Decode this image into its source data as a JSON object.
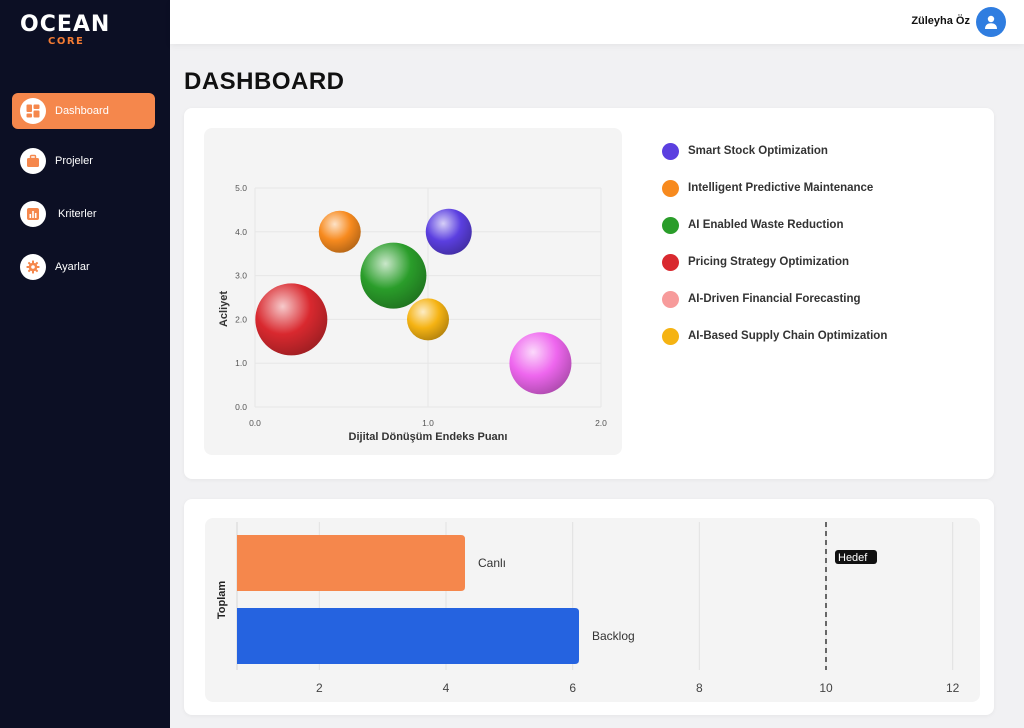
{
  "brand": {
    "name": "OCEAN",
    "sub": "CORE"
  },
  "sidebar": {
    "items": [
      {
        "label": "Dashboard",
        "icon": "dashboard-icon",
        "active": true
      },
      {
        "label": "Projeler",
        "icon": "briefcase-icon",
        "active": false
      },
      {
        "label": "Kriterler",
        "icon": "bar-chart-icon",
        "active": false
      },
      {
        "label": "Ayarlar",
        "icon": "gear-icon",
        "active": false
      }
    ]
  },
  "header": {
    "user_name": "Züleyha Öz"
  },
  "page": {
    "title": "DASHBOARD"
  },
  "colors": {
    "accent": "#f5874c",
    "sidebar_bg": "#0c0f24",
    "avatar": "#2f7de0"
  },
  "chart_data": [
    {
      "type": "scatter",
      "xlabel": "Dijital Dönüşüm Endeks Puanı",
      "ylabel": "Acliyet",
      "xlim": [
        0,
        2
      ],
      "ylim": [
        0,
        5
      ],
      "xticks": [
        "0.0",
        "1.0",
        "2.0"
      ],
      "yticks": [
        "0.0",
        "1.0",
        "2.0",
        "3.0",
        "4.0",
        "5.0"
      ],
      "grid": true,
      "legend_position": "right",
      "series": [
        {
          "name": "Smart Stock Optimization",
          "color": "#5b3fe0",
          "x": 1.12,
          "y": 4.0,
          "size": 23
        },
        {
          "name": "Intelligent Predictive Maintenance",
          "color": "#f78a1e",
          "x": 0.49,
          "y": 4.0,
          "size": 21
        },
        {
          "name": "AI Enabled Waste Reduction",
          "color": "#2a9d2a",
          "x": 0.8,
          "y": 3.0,
          "size": 33
        },
        {
          "name": "Pricing Strategy Optimization",
          "color": "#d9292f",
          "x": 0.21,
          "y": 2.0,
          "size": 36
        },
        {
          "name": "AI-Driven Financial Forecasting",
          "color": "#f79b9b",
          "x": 1.65,
          "y": 1.0,
          "size": 31,
          "marker_color": "#ee66ee"
        },
        {
          "name": "AI-Based Supply Chain Optimization",
          "color": "#f5b313",
          "x": 1.0,
          "y": 2.0,
          "size": 21
        }
      ]
    },
    {
      "type": "bar",
      "orientation": "horizontal",
      "ylabel": "Toplam",
      "xlim": [
        0.7,
        12.4
      ],
      "xticks": [
        2,
        4,
        6,
        8,
        10,
        12
      ],
      "grid": true,
      "categories": [
        "Canlı",
        "Backlog"
      ],
      "values": [
        4.3,
        6.1
      ],
      "colors": [
        "#f5874c",
        "#2563e0"
      ],
      "target": {
        "label": "Hedef",
        "value": 10
      }
    }
  ]
}
